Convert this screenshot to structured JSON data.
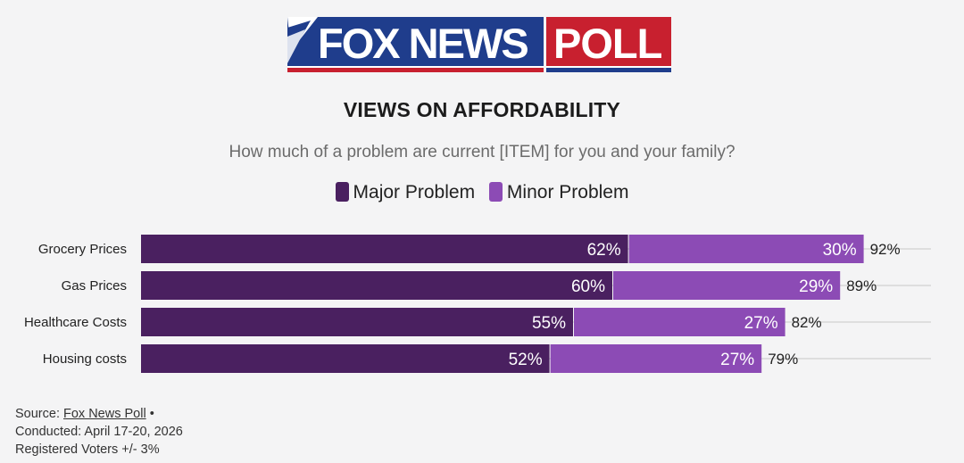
{
  "logo": {
    "brand_text": "FOX NEWS",
    "poll_text": "POLL"
  },
  "colors": {
    "major": "#4a2060",
    "minor": "#8c4bb5",
    "background": "#f4f4f5",
    "grid": "#d6d6d6"
  },
  "chart_data": {
    "type": "bar",
    "orientation": "horizontal",
    "stacked": true,
    "title": "VIEWS ON AFFORDABILITY",
    "subtitle": "How much of a problem are current [ITEM] for you and your family?",
    "categories": [
      "Grocery Prices",
      "Gas Prices",
      "Healthcare Costs",
      "Housing costs"
    ],
    "series": [
      {
        "name": "Major Problem",
        "values": [
          62,
          60,
          55,
          52
        ],
        "labels": [
          "62%",
          "60%",
          "55%",
          "52%"
        ]
      },
      {
        "name": "Minor Problem",
        "values": [
          30,
          29,
          27,
          27
        ],
        "labels": [
          "30%",
          "29%",
          "27%",
          "27%"
        ]
      }
    ],
    "totals": [
      92,
      89,
      82,
      79
    ],
    "total_labels": [
      "92%",
      "89%",
      "82%",
      "79%"
    ],
    "xlim": [
      0,
      100
    ],
    "unit": "%",
    "legend_position": "top-center",
    "grid": true
  },
  "footer": {
    "source_label": "Source: ",
    "source_link": "Fox News Poll",
    "source_sep": " •",
    "conducted": "Conducted: April 17-20, 2026",
    "sample": "Registered Voters +/- 3%"
  }
}
